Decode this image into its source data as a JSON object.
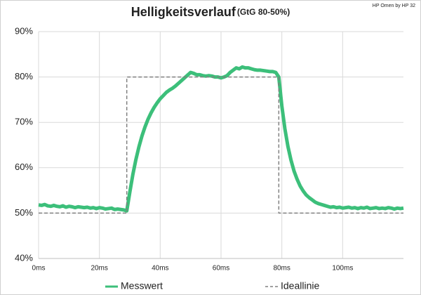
{
  "chart_data": {
    "type": "line",
    "title": "Helligkeitsverlauf",
    "subtitle": "(GtG 80-50%)",
    "annotation": "HP Omen by HP 32",
    "xlim": [
      0,
      120
    ],
    "ylim": [
      40,
      90
    ],
    "xticks": [
      {
        "value": 0,
        "label": "0ms"
      },
      {
        "value": 20,
        "label": "20ms"
      },
      {
        "value": 40,
        "label": "40ms"
      },
      {
        "value": 60,
        "label": "60ms"
      },
      {
        "value": 80,
        "label": "80ms"
      },
      {
        "value": 100,
        "label": "100ms"
      }
    ],
    "yticks": [
      {
        "value": 40,
        "label": "40%"
      },
      {
        "value": 50,
        "label": "50%"
      },
      {
        "value": 60,
        "label": "60%"
      },
      {
        "value": 70,
        "label": "70%"
      },
      {
        "value": 80,
        "label": "80%"
      },
      {
        "value": 90,
        "label": "90%"
      }
    ],
    "grid": true,
    "series": [
      {
        "name": "Messwert",
        "color": "#3cbf7a",
        "dashed": false,
        "x": [
          0,
          1,
          2,
          3,
          4,
          5,
          6,
          7,
          8,
          9,
          10,
          11,
          12,
          13,
          14,
          15,
          16,
          17,
          18,
          19,
          20,
          21,
          22,
          23,
          24,
          25,
          26,
          27,
          28,
          29,
          30,
          31,
          32,
          33,
          34,
          35,
          36,
          37,
          38,
          39,
          40,
          41,
          42,
          43,
          44,
          45,
          46,
          47,
          48,
          49,
          50,
          51,
          52,
          53,
          54,
          55,
          56,
          57,
          58,
          59,
          60,
          61,
          62,
          63,
          64,
          65,
          66,
          67,
          68,
          69,
          70,
          71,
          72,
          73,
          74,
          75,
          76,
          77,
          78,
          79,
          80,
          81,
          82,
          83,
          84,
          85,
          86,
          87,
          88,
          89,
          90,
          91,
          92,
          93,
          94,
          95,
          96,
          97,
          98,
          99,
          100,
          101,
          102,
          103,
          104,
          105,
          106,
          107,
          108,
          109,
          110,
          111,
          112,
          113,
          114,
          115,
          116,
          117,
          118,
          119,
          120
        ],
        "values": [
          51.8,
          51.7,
          51.9,
          51.6,
          51.5,
          51.7,
          51.5,
          51.4,
          51.6,
          51.3,
          51.5,
          51.4,
          51.2,
          51.4,
          51.3,
          51.2,
          51.3,
          51.1,
          51.2,
          51.0,
          51.2,
          51.1,
          50.9,
          51.0,
          51.1,
          50.8,
          50.9,
          50.8,
          50.7,
          50.5,
          54.6,
          58.5,
          61.8,
          64.6,
          67.0,
          69.0,
          70.7,
          72.1,
          73.3,
          74.3,
          75.2,
          75.9,
          76.6,
          77.1,
          77.5,
          78.0,
          78.6,
          79.2,
          79.8,
          80.4,
          81,
          80.8,
          80.5,
          80.5,
          80.3,
          80.2,
          80.3,
          80.2,
          80.0,
          80,
          79.8,
          80,
          80.3,
          81,
          81.5,
          82,
          81.8,
          82.2,
          82,
          82,
          81.8,
          81.6,
          81.5,
          81.5,
          81.4,
          81.3,
          81.2,
          81.2,
          81,
          80,
          73.6,
          68.6,
          64.7,
          61.7,
          59.3,
          57.5,
          56.0,
          54.9,
          54.0,
          53.4,
          52.9,
          52.4,
          52.1,
          51.9,
          51.7,
          51.5,
          51.3,
          51.4,
          51.2,
          51.3,
          51.1,
          51.2,
          51.3,
          51.1,
          51.2,
          51.0,
          51.2,
          51.1,
          51.3,
          51.0,
          51.1,
          51.2,
          51.0,
          51.1,
          51.0,
          51.2,
          51.1,
          50.9,
          51.1,
          51.0,
          51.1
        ]
      },
      {
        "name": "Ideallinie",
        "color": "#808080",
        "dashed": true,
        "x": [
          0,
          29,
          29,
          79,
          79,
          120
        ],
        "values": [
          50,
          50,
          80,
          80,
          50,
          50
        ]
      }
    ]
  }
}
